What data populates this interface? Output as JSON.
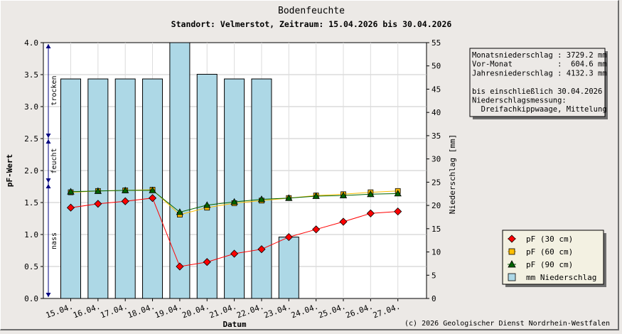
{
  "chart_data": {
    "type": "bar+line",
    "title": "Bodenfeuchte",
    "subtitle": "Standort: Velmerstot, Zeitraum: 15.04.2026 bis 30.04.2026",
    "xlabel": "Datum",
    "ylabel_left": "pF-Wert",
    "ylabel_right": "Niederschlag [mm]",
    "ylim_left": [
      0,
      4
    ],
    "ylim_right": [
      0,
      55
    ],
    "left_ticks": [
      "0.0",
      "0.5",
      "1.0",
      "1.5",
      "2.0",
      "2.5",
      "3.0",
      "3.5",
      "4.0"
    ],
    "right_ticks": [
      "0",
      "5",
      "10",
      "15",
      "20",
      "25",
      "30",
      "35",
      "40",
      "45",
      "50",
      "55"
    ],
    "categories": [
      "15.04.",
      "16.04.",
      "17.04.",
      "18.04.",
      "19.04.",
      "20.04.",
      "21.04.",
      "22.04.",
      "23.04.",
      "24.04.",
      "25.04.",
      "26.04.",
      "27.04."
    ],
    "zones": [
      {
        "label": "trocken",
        "from": 2.5,
        "to": 4.0
      },
      {
        "label": "feucht",
        "from": 1.8,
        "to": 2.5
      },
      {
        "label": "nass",
        "from": 0.0,
        "to": 1.8
      }
    ],
    "precipitation": {
      "name": "mm  Niederschlag",
      "color": "#add8e6",
      "values": [
        47.2,
        47.2,
        47.2,
        47.2,
        55.0,
        48.2,
        47.2,
        47.2,
        13.2,
        null,
        null,
        null,
        null
      ]
    },
    "series": [
      {
        "name": "pF (30 cm)",
        "color": "#ff0000",
        "marker": "diamond",
        "values": [
          1.42,
          1.48,
          1.52,
          1.57,
          0.5,
          0.57,
          0.7,
          0.77,
          0.96,
          1.08,
          1.2,
          1.33,
          1.36
        ]
      },
      {
        "name": "pF (60 cm)",
        "color": "#ffbf00",
        "marker": "square",
        "values": [
          1.66,
          1.68,
          1.69,
          1.7,
          1.31,
          1.42,
          1.49,
          1.53,
          1.57,
          1.61,
          1.63,
          1.66,
          1.68
        ]
      },
      {
        "name": "pF (90 cm)",
        "color": "#006400",
        "marker": "triangle",
        "values": [
          1.67,
          1.68,
          1.69,
          1.69,
          1.35,
          1.46,
          1.51,
          1.55,
          1.57,
          1.6,
          1.61,
          1.63,
          1.64
        ]
      }
    ],
    "legend_position": "lower-right",
    "grid": true
  },
  "info_box": {
    "lines": [
      "Monatsniederschlag : 3729.2 mm",
      "Vor-Monat          :  604.6 mm",
      "Jahresniederschlag : 4132.3 mm",
      "",
      "bis einschließlich 30.04.2026",
      "Niederschlagsmessung:",
      "  Dreifachkippwaage, Mittelung"
    ]
  },
  "copyright": "(c) 2026 Geologischer Dienst Nordrhein-Westfalen"
}
